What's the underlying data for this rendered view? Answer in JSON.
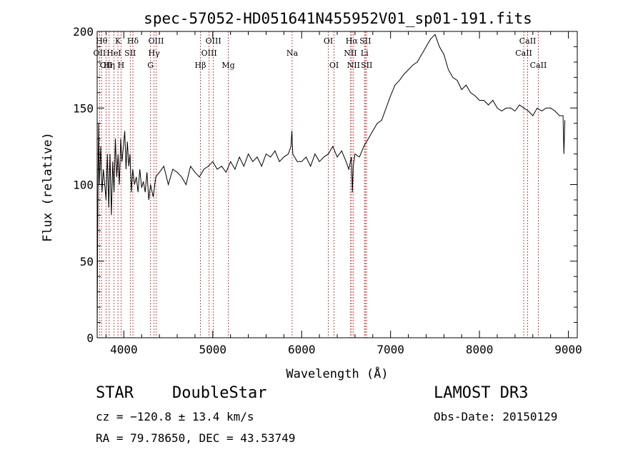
{
  "chart_data": {
    "type": "line",
    "title": "spec-57052-HD051641N455952V01_sp01-191.fits",
    "xlabel": "Wavelength (Å)",
    "ylabel": "Flux (relative)",
    "xlim": [
      3700,
      9100
    ],
    "ylim": [
      0,
      200
    ],
    "xticks": [
      4000,
      5000,
      6000,
      7000,
      8000,
      9000
    ],
    "yticks": [
      0,
      50,
      100,
      150,
      200
    ],
    "grid": false,
    "line_color": "#000000",
    "marker_color": "#b22222",
    "series": [
      {
        "x": [
          3700,
          3705,
          3715,
          3725,
          3740,
          3755,
          3770,
          3785,
          3800,
          3815,
          3830,
          3845,
          3860,
          3875,
          3890,
          3905,
          3920,
          3935,
          3950,
          3965,
          3980,
          3995,
          4010,
          4025,
          4040,
          4055,
          4070,
          4085,
          4100,
          4120,
          4140,
          4160,
          4180,
          4200,
          4220,
          4240,
          4260,
          4280,
          4300,
          4330,
          4360,
          4400,
          4450,
          4500,
          4550,
          4600,
          4650,
          4700,
          4750,
          4800,
          4850,
          4900,
          4950,
          5000,
          5050,
          5100,
          5150,
          5200,
          5250,
          5300,
          5350,
          5400,
          5450,
          5500,
          5550,
          5600,
          5650,
          5700,
          5750,
          5800,
          5850,
          5880,
          5890,
          5900,
          5920,
          5950,
          6000,
          6050,
          6100,
          6150,
          6200,
          6250,
          6300,
          6350,
          6400,
          6450,
          6500,
          6530,
          6560,
          6570,
          6580,
          6600,
          6650,
          6700,
          6750,
          6800,
          6850,
          6900,
          6950,
          7000,
          7050,
          7100,
          7150,
          7200,
          7250,
          7300,
          7350,
          7400,
          7450,
          7500,
          7550,
          7600,
          7650,
          7700,
          7750,
          7800,
          7850,
          7900,
          7950,
          8000,
          8050,
          8100,
          8150,
          8200,
          8250,
          8300,
          8350,
          8400,
          8450,
          8500,
          8550,
          8600,
          8650,
          8700,
          8750,
          8800,
          8850,
          8900,
          8940,
          8950,
          8960
        ],
        "y": [
          0,
          60,
          140,
          100,
          125,
          95,
          110,
          100,
          90,
          120,
          85,
          120,
          80,
          115,
          95,
          130,
          105,
          120,
          100,
          130,
          115,
          125,
          135,
          110,
          128,
          112,
          120,
          95,
          110,
          100,
          105,
          95,
          110,
          98,
          102,
          95,
          108,
          90,
          100,
          92,
          105,
          108,
          112,
          100,
          110,
          108,
          105,
          100,
          112,
          108,
          105,
          110,
          112,
          115,
          110,
          112,
          108,
          115,
          110,
          118,
          112,
          120,
          115,
          118,
          112,
          120,
          118,
          122,
          115,
          118,
          120,
          125,
          135,
          120,
          118,
          115,
          115,
          118,
          112,
          120,
          115,
          118,
          120,
          125,
          118,
          122,
          115,
          110,
          118,
          95,
          112,
          120,
          118,
          125,
          130,
          135,
          140,
          142,
          150,
          158,
          165,
          168,
          172,
          175,
          178,
          180,
          185,
          190,
          195,
          198,
          190,
          185,
          175,
          170,
          168,
          162,
          165,
          160,
          158,
          155,
          155,
          152,
          155,
          150,
          148,
          150,
          150,
          148,
          152,
          150,
          148,
          145,
          150,
          148,
          150,
          150,
          148,
          145,
          145,
          120,
          142
        ]
      }
    ],
    "lines": [
      {
        "x": 3750,
        "label": "Hθ",
        "row": 1
      },
      {
        "x": 3727,
        "label": "OII",
        "row": 2
      },
      {
        "x": 3800,
        "label": "OII",
        "row": 3
      },
      {
        "x": 3835,
        "label": "Hη",
        "row": 3
      },
      {
        "x": 3889,
        "label": "HeI",
        "row": 2
      },
      {
        "x": 3934,
        "label": "K",
        "row": 1
      },
      {
        "x": 3969,
        "label": "H",
        "row": 3
      },
      {
        "x": 4072,
        "label": "SII",
        "row": 2
      },
      {
        "x": 4102,
        "label": "Hδ",
        "row": 1
      },
      {
        "x": 4300,
        "label": "G",
        "row": 3
      },
      {
        "x": 4340,
        "label": "Hγ",
        "row": 2
      },
      {
        "x": 4363,
        "label": "OIII",
        "row": 1
      },
      {
        "x": 4861,
        "label": "Hβ",
        "row": 3
      },
      {
        "x": 4959,
        "label": "OIII",
        "row": 2
      },
      {
        "x": 5007,
        "label": "OIII",
        "row": 1
      },
      {
        "x": 5175,
        "label": "Mg",
        "row": 3
      },
      {
        "x": 5893,
        "label": "Na",
        "row": 2
      },
      {
        "x": 6300,
        "label": "OI",
        "row": 1
      },
      {
        "x": 6364,
        "label": "OI",
        "row": 3
      },
      {
        "x": 6548,
        "label": "NII",
        "row": 2
      },
      {
        "x": 6563,
        "label": "Hα",
        "row": 1
      },
      {
        "x": 6583,
        "label": "NII",
        "row": 3
      },
      {
        "x": 6707,
        "label": "Li",
        "row": 2
      },
      {
        "x": 6716,
        "label": "SII",
        "row": 1
      },
      {
        "x": 6731,
        "label": "SII",
        "row": 3
      },
      {
        "x": 8498,
        "label": "CaII",
        "row": 2
      },
      {
        "x": 8542,
        "label": "CaII",
        "row": 1
      },
      {
        "x": 8662,
        "label": "CaII",
        "row": 3
      }
    ]
  },
  "info": {
    "class": "STAR",
    "subclass": "DoubleStar",
    "survey": "LAMOST DR3",
    "cz": "cz = −120.8 ± 13.4 km/s",
    "obs_date": "Obs-Date: 20150129",
    "coords": "RA =  79.78650, DEC =  43.53749"
  }
}
